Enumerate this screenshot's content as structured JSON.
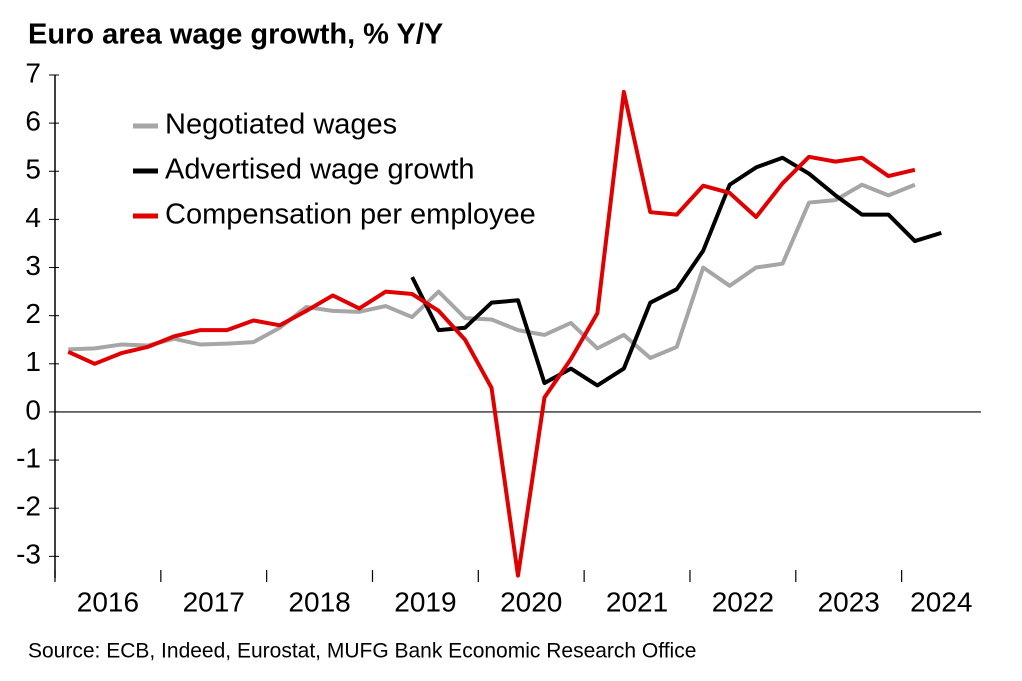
{
  "chart_data": {
    "type": "line",
    "title": "Euro area wage growth, % Y/Y",
    "source": "Source: ECB, Indeed, Eurostat, MUFG Bank Economic Research Office",
    "x": [
      2016.125,
      2016.375,
      2016.625,
      2016.875,
      2017.125,
      2017.375,
      2017.625,
      2017.875,
      2018.125,
      2018.375,
      2018.625,
      2018.875,
      2019.125,
      2019.375,
      2019.625,
      2019.875,
      2020.125,
      2020.375,
      2020.625,
      2020.875,
      2021.125,
      2021.375,
      2021.625,
      2021.875,
      2022.125,
      2022.375,
      2022.625,
      2022.875,
      2023.125,
      2023.375,
      2023.625,
      2023.875,
      2024.125,
      2024.375
    ],
    "series": [
      {
        "name": "Negotiated wages",
        "color": "#a6a6a6",
        "values": [
          1.3,
          1.32,
          1.4,
          1.38,
          1.52,
          1.4,
          1.42,
          1.45,
          1.75,
          2.18,
          2.1,
          2.08,
          2.2,
          1.97,
          2.5,
          1.95,
          1.92,
          1.7,
          1.6,
          1.85,
          1.32,
          1.6,
          1.12,
          1.35,
          3.0,
          2.62,
          3.0,
          3.08,
          4.35,
          4.4,
          4.72,
          4.5,
          4.72,
          null
        ]
      },
      {
        "name": "Advertised wage growth",
        "color": "#000000",
        "values": [
          null,
          null,
          null,
          null,
          null,
          null,
          null,
          null,
          null,
          null,
          null,
          null,
          null,
          2.8,
          1.7,
          1.75,
          2.27,
          2.32,
          0.6,
          0.9,
          0.55,
          0.9,
          2.27,
          2.55,
          3.35,
          4.72,
          5.08,
          5.28,
          4.95,
          4.5,
          4.1,
          4.1,
          3.55,
          3.72
        ]
      },
      {
        "name": "Compensation per employee",
        "color": "#e00000",
        "values": [
          1.25,
          1.0,
          1.22,
          1.35,
          1.57,
          1.7,
          1.7,
          1.9,
          1.8,
          2.1,
          2.42,
          2.15,
          2.5,
          2.45,
          2.1,
          1.5,
          0.5,
          -3.4,
          0.3,
          1.1,
          2.05,
          6.65,
          4.15,
          4.1,
          4.7,
          4.55,
          4.05,
          4.75,
          5.3,
          5.2,
          5.28,
          4.9,
          5.03,
          null
        ]
      }
    ],
    "xlim": [
      2016,
      2024.75
    ],
    "xticks": [
      2016,
      2017,
      2018,
      2019,
      2020,
      2021,
      2022,
      2023,
      2024
    ],
    "ylim": [
      -3.45,
      7
    ],
    "yticks": [
      -3,
      -2,
      -1,
      0,
      1,
      2,
      3,
      4,
      5,
      6,
      7
    ],
    "legend": "upper left"
  }
}
